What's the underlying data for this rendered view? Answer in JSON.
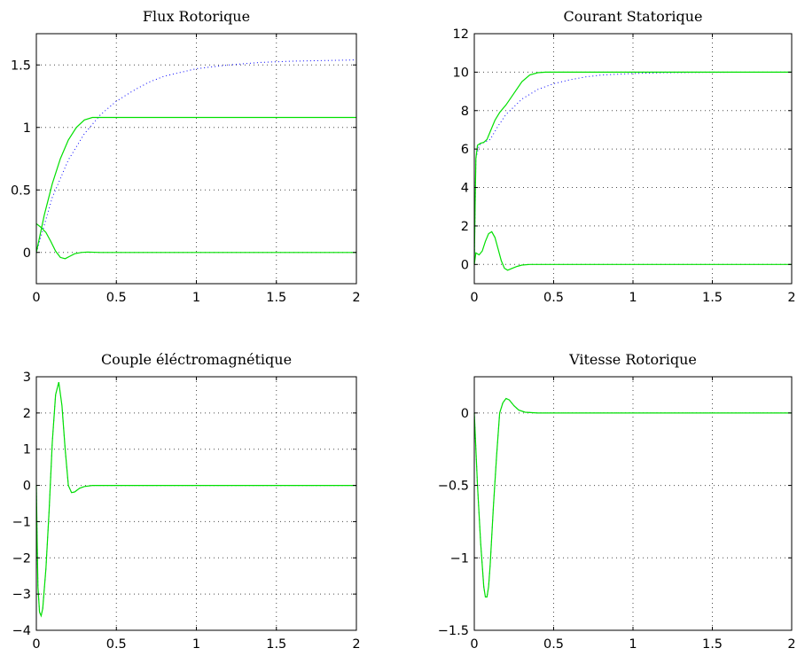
{
  "colors": {
    "green": "#00e000",
    "blue": "#0000ff"
  },
  "chart_data": [
    {
      "type": "line",
      "title": "Flux Rotorique",
      "xlim": [
        0,
        2
      ],
      "ylim": [
        -0.25,
        1.75
      ],
      "xticks": [
        0,
        0.5,
        1,
        1.5,
        2
      ],
      "xtick_labels": [
        "0",
        "0.5",
        "1",
        "1.5",
        "2"
      ],
      "yticks": [
        0,
        0.5,
        1,
        1.5
      ],
      "ytick_labels": [
        "0",
        "0.5",
        "1",
        "1.5"
      ],
      "grid": true,
      "series": [
        {
          "color": "#0000ff",
          "style": "dotted",
          "x": [
            0,
            0.1,
            0.2,
            0.3,
            0.4,
            0.5,
            0.6,
            0.7,
            0.8,
            0.9,
            1.0,
            1.2,
            1.4,
            1.6,
            1.8,
            2.0
          ],
          "y": [
            0,
            0.44,
            0.74,
            0.95,
            1.1,
            1.21,
            1.29,
            1.36,
            1.41,
            1.44,
            1.47,
            1.5,
            1.52,
            1.53,
            1.535,
            1.54
          ]
        },
        {
          "color": "#00e000",
          "style": "solid",
          "x": [
            0,
            0.05,
            0.1,
            0.15,
            0.2,
            0.25,
            0.3,
            0.35,
            0.4,
            0.5,
            1.0,
            1.5,
            2.0
          ],
          "y": [
            0,
            0.3,
            0.55,
            0.75,
            0.9,
            1.0,
            1.06,
            1.08,
            1.08,
            1.08,
            1.08,
            1.08,
            1.08
          ]
        },
        {
          "color": "#00e000",
          "style": "solid",
          "x": [
            0,
            0.03,
            0.06,
            0.09,
            0.12,
            0.15,
            0.18,
            0.21,
            0.24,
            0.28,
            0.32,
            0.4,
            0.5,
            1.0,
            2.0
          ],
          "y": [
            0.23,
            0.2,
            0.16,
            0.09,
            0.01,
            -0.04,
            -0.05,
            -0.03,
            -0.01,
            0,
            0.003,
            0,
            0,
            0,
            0
          ]
        }
      ]
    },
    {
      "type": "line",
      "title": "Courant Statorique",
      "xlim": [
        0,
        2
      ],
      "ylim": [
        -1,
        12
      ],
      "xticks": [
        0,
        0.5,
        1,
        1.5,
        2
      ],
      "xtick_labels": [
        "0",
        "0.5",
        "1",
        "1.5",
        "2"
      ],
      "yticks": [
        0,
        2,
        4,
        6,
        8,
        10,
        12
      ],
      "ytick_labels": [
        "0",
        "2",
        "4",
        "6",
        "8",
        "10",
        "12"
      ],
      "grid": true,
      "series": [
        {
          "color": "#0000ff",
          "style": "dotted",
          "x": [
            0,
            0.01,
            0.03,
            0.05,
            0.1,
            0.15,
            0.2,
            0.3,
            0.4,
            0.5,
            0.6,
            0.7,
            0.8,
            1.0,
            1.2,
            1.5,
            2.0
          ],
          "y": [
            0,
            5.5,
            6.2,
            6.3,
            6.5,
            7.2,
            7.8,
            8.6,
            9.1,
            9.4,
            9.6,
            9.75,
            9.85,
            9.93,
            9.97,
            9.99,
            10
          ]
        },
        {
          "color": "#00e000",
          "style": "solid",
          "x": [
            0,
            0.005,
            0.01,
            0.02,
            0.04,
            0.06,
            0.08,
            0.1,
            0.13,
            0.16,
            0.2,
            0.25,
            0.3,
            0.35,
            0.4,
            0.45,
            0.5,
            1.0,
            2.0
          ],
          "y": [
            0,
            3.0,
            5.5,
            6.2,
            6.3,
            6.35,
            6.5,
            6.9,
            7.5,
            7.9,
            8.3,
            8.9,
            9.5,
            9.85,
            9.97,
            10,
            10,
            10,
            10
          ]
        },
        {
          "color": "#00e000",
          "style": "solid",
          "x": [
            0,
            0.01,
            0.03,
            0.05,
            0.07,
            0.09,
            0.11,
            0.13,
            0.15,
            0.17,
            0.19,
            0.21,
            0.24,
            0.27,
            0.3,
            0.35,
            0.4,
            0.5,
            1.0,
            2.0
          ],
          "y": [
            0,
            0.6,
            0.5,
            0.7,
            1.2,
            1.6,
            1.7,
            1.4,
            0.8,
            0.2,
            -0.2,
            -0.3,
            -0.2,
            -0.1,
            -0.03,
            0,
            0,
            0,
            0,
            0
          ]
        }
      ]
    },
    {
      "type": "line",
      "title": "Couple éléctromagnétique",
      "xlim": [
        0,
        2
      ],
      "ylim": [
        -4,
        3
      ],
      "xticks": [
        0,
        0.5,
        1,
        1.5,
        2
      ],
      "xtick_labels": [
        "0",
        "0.5",
        "1",
        "1.5",
        "2"
      ],
      "yticks": [
        -4,
        -3,
        -2,
        -1,
        0,
        1,
        2,
        3
      ],
      "ytick_labels": [
        "−4",
        "−3",
        "−2",
        "−1",
        "0",
        "1",
        "2",
        "3"
      ],
      "grid": true,
      "series": [
        {
          "color": "#0000ff",
          "style": "dotted",
          "x": [
            0,
            0.005,
            0.01,
            0.02,
            0.03,
            0.04,
            0.06,
            0.08,
            0.1,
            0.12,
            0.14,
            0.16,
            0.18,
            0.2,
            0.22,
            0.24,
            0.27,
            0.3,
            0.35,
            0.4,
            0.5,
            1.0,
            2.0
          ],
          "y": [
            0,
            -1.5,
            -2.8,
            -3.5,
            -3.6,
            -3.4,
            -2.3,
            -0.7,
            1.2,
            2.5,
            2.85,
            2.2,
            1.0,
            0.0,
            -0.2,
            -0.18,
            -0.08,
            -0.03,
            0,
            0,
            0,
            0,
            0
          ]
        },
        {
          "color": "#00e000",
          "style": "solid",
          "x": [
            0,
            0.005,
            0.01,
            0.02,
            0.03,
            0.04,
            0.06,
            0.08,
            0.1,
            0.12,
            0.14,
            0.16,
            0.18,
            0.2,
            0.22,
            0.24,
            0.27,
            0.3,
            0.35,
            0.4,
            0.5,
            1.0,
            2.0
          ],
          "y": [
            0,
            -1.5,
            -2.8,
            -3.5,
            -3.6,
            -3.4,
            -2.3,
            -0.7,
            1.2,
            2.5,
            2.85,
            2.2,
            1.0,
            0.0,
            -0.2,
            -0.18,
            -0.08,
            -0.03,
            0,
            0,
            0,
            0,
            0
          ]
        }
      ]
    },
    {
      "type": "line",
      "title": "Vitesse Rotorique",
      "xlim": [
        0,
        2
      ],
      "ylim": [
        -1.5,
        0.25
      ],
      "xticks": [
        0,
        0.5,
        1,
        1.5,
        2
      ],
      "xtick_labels": [
        "0",
        "0.5",
        "1",
        "1.5",
        "2"
      ],
      "yticks": [
        -1.5,
        -1,
        -0.5,
        0
      ],
      "ytick_labels": [
        "−1.5",
        "−1",
        "−0.5",
        "0"
      ],
      "grid": true,
      "series": [
        {
          "color": "#0000ff",
          "style": "dotted",
          "x": [
            0,
            0.02,
            0.04,
            0.06,
            0.07,
            0.08,
            0.09,
            0.1,
            0.12,
            0.14,
            0.16,
            0.18,
            0.2,
            0.22,
            0.25,
            0.28,
            0.32,
            0.4,
            0.5,
            1.0,
            2.0
          ],
          "y": [
            0,
            -0.5,
            -0.9,
            -1.2,
            -1.27,
            -1.27,
            -1.2,
            -1.05,
            -0.65,
            -0.3,
            0.0,
            0.07,
            0.1,
            0.09,
            0.05,
            0.02,
            0.005,
            0,
            0,
            0,
            0
          ]
        },
        {
          "color": "#00e000",
          "style": "solid",
          "x": [
            0,
            0.02,
            0.04,
            0.06,
            0.07,
            0.08,
            0.09,
            0.1,
            0.12,
            0.14,
            0.16,
            0.18,
            0.2,
            0.22,
            0.25,
            0.28,
            0.32,
            0.4,
            0.5,
            1.0,
            2.0
          ],
          "y": [
            0,
            -0.5,
            -0.9,
            -1.2,
            -1.27,
            -1.27,
            -1.2,
            -1.05,
            -0.65,
            -0.3,
            0.0,
            0.07,
            0.1,
            0.09,
            0.05,
            0.02,
            0.005,
            0,
            0,
            0,
            0
          ]
        }
      ]
    }
  ]
}
